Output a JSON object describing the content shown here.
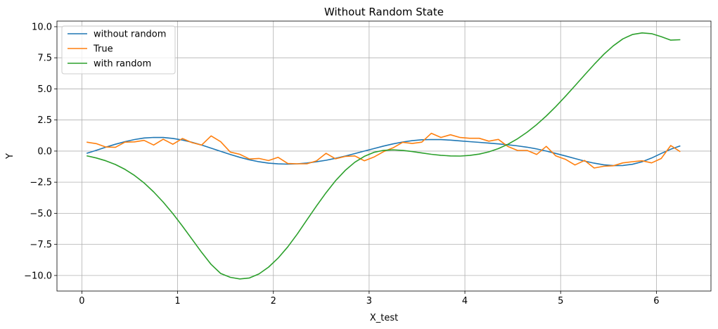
{
  "chart_data": {
    "type": "line",
    "title": "Without Random State",
    "xlabel": "X_test",
    "ylabel": "Y",
    "xlim": [
      -0.26,
      6.57
    ],
    "ylim": [
      -11.25,
      10.45
    ],
    "xticks": [
      0,
      1,
      2,
      3,
      4,
      5,
      6
    ],
    "yticks": [
      -10.0,
      -7.5,
      -5.0,
      -2.5,
      0.0,
      2.5,
      5.0,
      7.5,
      10.0
    ],
    "xtick_labels": [
      "0",
      "1",
      "2",
      "3",
      "4",
      "5",
      "6"
    ],
    "ytick_labels": [
      "−10.0",
      "−7.5",
      "−5.0",
      "−2.5",
      "0.0",
      "2.5",
      "5.0",
      "7.5",
      "10.0"
    ],
    "grid": true,
    "legend_position": "top-left",
    "colors": {
      "without_random": "#1f77b4",
      "true": "#ff7f0e",
      "with_random": "#2ca02c"
    },
    "series": [
      {
        "name": "without random",
        "color": "#1f77b4",
        "x": [
          0.05,
          0.15,
          0.25,
          0.35,
          0.45,
          0.55,
          0.65,
          0.75,
          0.85,
          0.95,
          1.05,
          1.15,
          1.25,
          1.35,
          1.45,
          1.55,
          1.65,
          1.75,
          1.85,
          1.95,
          2.05,
          2.15,
          2.25,
          2.35,
          2.45,
          2.55,
          2.65,
          2.75,
          2.85,
          2.95,
          3.05,
          3.15,
          3.25,
          3.35,
          3.45,
          3.55,
          3.65,
          3.75,
          3.85,
          3.95,
          4.05,
          4.15,
          4.25,
          4.35,
          4.45,
          4.55,
          4.65,
          4.75,
          4.85,
          4.95,
          5.05,
          5.15,
          5.25,
          5.35,
          5.45,
          5.55,
          5.65,
          5.75,
          5.85,
          5.95,
          6.05,
          6.15,
          6.25
        ],
        "y": [
          -0.18,
          0.06,
          0.31,
          0.55,
          0.76,
          0.93,
          1.05,
          1.1,
          1.09,
          1.02,
          0.89,
          0.71,
          0.49,
          0.24,
          -0.02,
          -0.27,
          -0.5,
          -0.7,
          -0.86,
          -0.97,
          -1.03,
          -1.05,
          -1.02,
          -0.96,
          -0.86,
          -0.74,
          -0.58,
          -0.4,
          -0.2,
          0.0,
          0.2,
          0.4,
          0.58,
          0.73,
          0.84,
          0.91,
          0.93,
          0.92,
          0.88,
          0.82,
          0.76,
          0.7,
          0.64,
          0.58,
          0.51,
          0.42,
          0.31,
          0.17,
          0.0,
          -0.19,
          -0.39,
          -0.6,
          -0.8,
          -0.97,
          -1.1,
          -1.17,
          -1.16,
          -1.06,
          -0.86,
          -0.56,
          -0.19,
          0.15,
          0.42
        ]
      },
      {
        "name": "True",
        "color": "#ff7f0e",
        "x": [
          0.05,
          0.15,
          0.25,
          0.35,
          0.45,
          0.55,
          0.65,
          0.75,
          0.85,
          0.95,
          1.05,
          1.15,
          1.25,
          1.35,
          1.45,
          1.55,
          1.65,
          1.75,
          1.85,
          1.95,
          2.05,
          2.15,
          2.25,
          2.35,
          2.45,
          2.55,
          2.65,
          2.75,
          2.85,
          2.95,
          3.05,
          3.15,
          3.25,
          3.35,
          3.45,
          3.55,
          3.65,
          3.75,
          3.85,
          3.95,
          4.05,
          4.15,
          4.25,
          4.35,
          4.45,
          4.55,
          4.65,
          4.75,
          4.85,
          4.95,
          5.05,
          5.15,
          5.25,
          5.35,
          5.45,
          5.55,
          5.65,
          5.75,
          5.85,
          5.95,
          6.05,
          6.15,
          6.25
        ],
        "y": [
          0.72,
          0.6,
          0.33,
          0.3,
          0.72,
          0.74,
          0.86,
          0.49,
          0.95,
          0.55,
          1.01,
          0.68,
          0.48,
          1.22,
          0.75,
          -0.08,
          -0.26,
          -0.64,
          -0.59,
          -0.76,
          -0.5,
          -1.0,
          -1.02,
          -1.02,
          -0.79,
          -0.18,
          -0.62,
          -0.43,
          -0.39,
          -0.78,
          -0.48,
          -0.05,
          0.26,
          0.71,
          0.61,
          0.72,
          1.43,
          1.1,
          1.31,
          1.09,
          1.03,
          1.03,
          0.8,
          0.94,
          0.37,
          0.05,
          0.05,
          -0.27,
          0.38,
          -0.39,
          -0.66,
          -1.12,
          -0.75,
          -1.36,
          -1.22,
          -1.18,
          -0.95,
          -0.85,
          -0.78,
          -0.95,
          -0.6,
          0.45,
          -0.05
        ]
      },
      {
        "name": "with random",
        "color": "#2ca02c",
        "x": [
          0.05,
          0.15,
          0.25,
          0.35,
          0.45,
          0.55,
          0.65,
          0.75,
          0.85,
          0.95,
          1.05,
          1.15,
          1.25,
          1.35,
          1.45,
          1.55,
          1.65,
          1.75,
          1.85,
          1.95,
          2.05,
          2.15,
          2.25,
          2.35,
          2.45,
          2.55,
          2.65,
          2.75,
          2.85,
          2.95,
          3.05,
          3.15,
          3.25,
          3.35,
          3.45,
          3.55,
          3.65,
          3.75,
          3.85,
          3.95,
          4.05,
          4.15,
          4.25,
          4.35,
          4.45,
          4.55,
          4.65,
          4.75,
          4.85,
          4.95,
          5.05,
          5.15,
          5.25,
          5.35,
          5.45,
          5.55,
          5.65,
          5.75,
          5.85,
          5.95,
          6.05,
          6.15,
          6.25
        ],
        "y": [
          -0.38,
          -0.55,
          -0.78,
          -1.08,
          -1.47,
          -1.96,
          -2.56,
          -3.28,
          -4.1,
          -5.03,
          -6.03,
          -7.08,
          -8.13,
          -9.11,
          -9.84,
          -10.15,
          -10.28,
          -10.2,
          -9.87,
          -9.33,
          -8.6,
          -7.7,
          -6.66,
          -5.53,
          -4.42,
          -3.35,
          -2.38,
          -1.55,
          -0.9,
          -0.42,
          -0.1,
          0.06,
          0.1,
          0.06,
          -0.04,
          -0.15,
          -0.26,
          -0.34,
          -0.39,
          -0.4,
          -0.35,
          -0.24,
          -0.06,
          0.2,
          0.55,
          0.99,
          1.52,
          2.13,
          2.82,
          3.58,
          4.4,
          5.25,
          6.12,
          6.97,
          7.77,
          8.46,
          9.02,
          9.37,
          9.5,
          9.44,
          9.2,
          8.92,
          8.95
        ]
      }
    ]
  }
}
